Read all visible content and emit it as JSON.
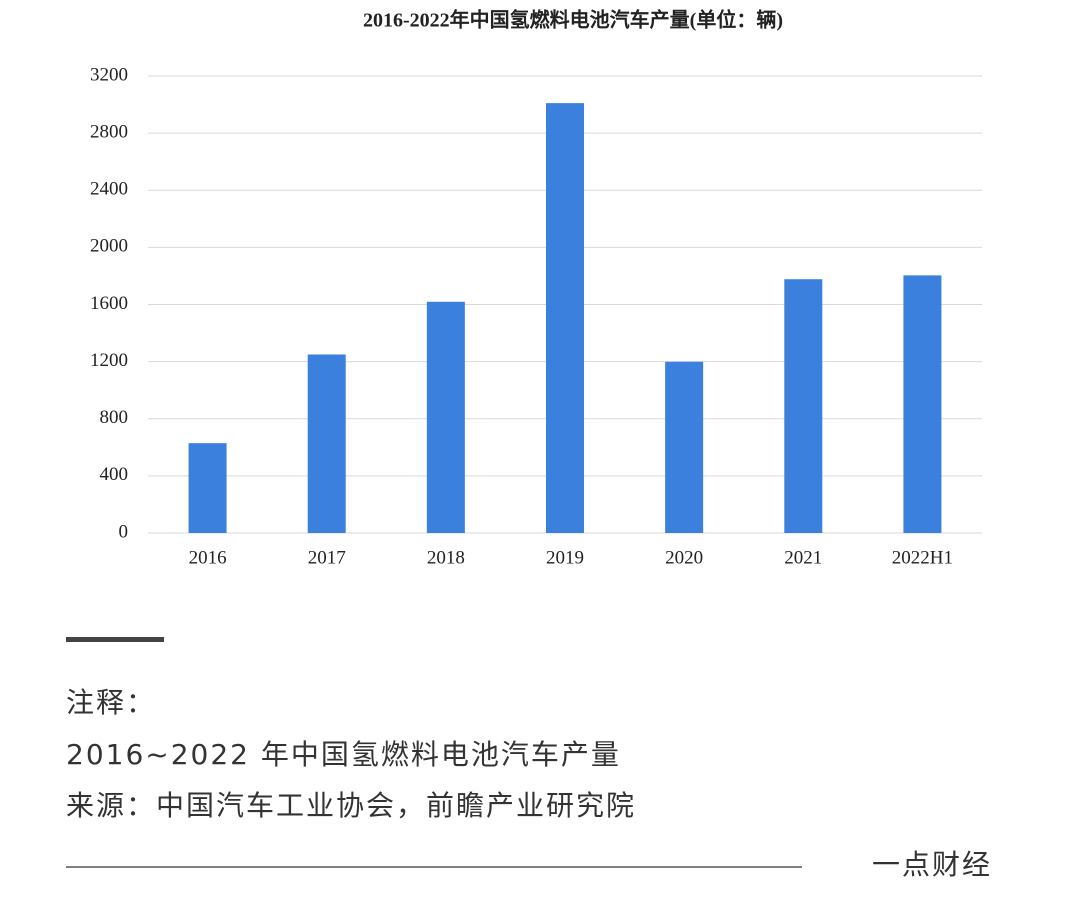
{
  "chart_data": {
    "type": "bar",
    "title": "2016-2022年中国氢燃料电池汽车产量(单位：辆)",
    "categories": [
      "2016",
      "2017",
      "2018",
      "2019",
      "2020",
      "2021",
      "2022H1"
    ],
    "values": [
      629,
      1250,
      1619,
      3010,
      1199,
      1777,
      1804
    ],
    "color": "#3b80dc",
    "ylim": [
      0,
      3200
    ],
    "yticks": [
      0,
      400,
      800,
      1200,
      1600,
      2000,
      2400,
      2800,
      3200
    ],
    "grid": true
  },
  "footer": {
    "note_label": "注释：",
    "note": "2016~2022 年中国氢燃料电池汽车产量",
    "source": "来源：中国汽车工业协会，前瞻产业研究院",
    "brand": "一点财经"
  }
}
